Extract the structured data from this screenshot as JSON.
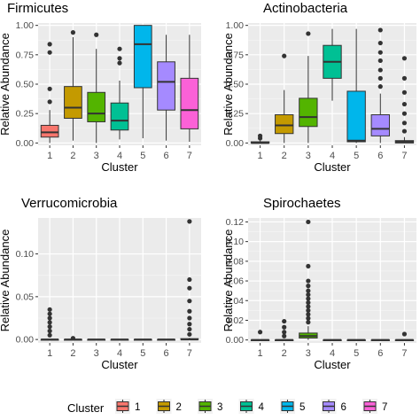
{
  "legend": {
    "title": "Cluster",
    "placement": "bottom",
    "items": [
      {
        "label": "1",
        "color": "#F8766D"
      },
      {
        "label": "2",
        "color": "#C49A00"
      },
      {
        "label": "3",
        "color": "#53B400"
      },
      {
        "label": "4",
        "color": "#00C094"
      },
      {
        "label": "5",
        "color": "#00B6EB"
      },
      {
        "label": "6",
        "color": "#A58AFF"
      },
      {
        "label": "7",
        "color": "#FB61D7"
      }
    ]
  },
  "chart_data": [
    {
      "type": "boxplot",
      "title": "Firmicutes",
      "xlabel": "Cluster",
      "ylabel": "Relative Abundance",
      "categories": [
        "1",
        "2",
        "3",
        "4",
        "5",
        "6",
        "7"
      ],
      "ylim": [
        -0.02,
        1.02
      ],
      "yticks": [
        0.0,
        0.25,
        0.5,
        0.75,
        1.0
      ],
      "ytick_labels": [
        "0.00",
        "0.25",
        "0.50",
        "0.75",
        "1.00"
      ],
      "grid": true,
      "boxes": [
        {
          "q1": 0.05,
          "median": 0.09,
          "q3": 0.15,
          "whisker_low": 0.0,
          "whisker_high": 0.28,
          "outliers": [
            0.35,
            0.46,
            0.77,
            0.84
          ]
        },
        {
          "q1": 0.21,
          "median": 0.3,
          "q3": 0.48,
          "whisker_low": 0.02,
          "whisker_high": 0.9,
          "outliers": [
            0.94
          ]
        },
        {
          "q1": 0.18,
          "median": 0.25,
          "q3": 0.43,
          "whisker_low": 0.0,
          "whisker_high": 0.8,
          "outliers": [
            0.92
          ]
        },
        {
          "q1": 0.11,
          "median": 0.19,
          "q3": 0.34,
          "whisker_low": 0.03,
          "whisker_high": 0.53,
          "outliers": [
            0.68,
            0.72,
            0.8
          ]
        },
        {
          "q1": 0.47,
          "median": 0.84,
          "q3": 1.0,
          "whisker_low": 0.04,
          "whisker_high": 1.0,
          "outliers": []
        },
        {
          "q1": 0.28,
          "median": 0.52,
          "q3": 0.69,
          "whisker_low": 0.02,
          "whisker_high": 0.92,
          "outliers": []
        },
        {
          "q1": 0.12,
          "median": 0.28,
          "q3": 0.55,
          "whisker_low": 0.01,
          "whisker_high": 0.92,
          "outliers": []
        }
      ]
    },
    {
      "type": "boxplot",
      "title": "Actinobacteria",
      "xlabel": "Cluster",
      "ylabel": "Relative Abundance",
      "categories": [
        "1",
        "2",
        "3",
        "4",
        "5",
        "6",
        "7"
      ],
      "ylim": [
        -0.02,
        1.02
      ],
      "yticks": [
        0.0,
        0.25,
        0.5,
        0.75,
        1.0
      ],
      "ytick_labels": [
        "0.00",
        "0.25",
        "0.50",
        "0.75",
        "1.00"
      ],
      "grid": true,
      "boxes": [
        {
          "q1": 0.0,
          "median": 0.0,
          "q3": 0.01,
          "whisker_low": 0.0,
          "whisker_high": 0.02,
          "outliers": [
            0.04,
            0.06
          ]
        },
        {
          "q1": 0.08,
          "median": 0.15,
          "q3": 0.24,
          "whisker_low": 0.0,
          "whisker_high": 0.45,
          "outliers": [
            0.74
          ]
        },
        {
          "q1": 0.14,
          "median": 0.22,
          "q3": 0.38,
          "whisker_low": 0.0,
          "whisker_high": 0.74,
          "outliers": [
            0.93
          ]
        },
        {
          "q1": 0.55,
          "median": 0.69,
          "q3": 0.83,
          "whisker_low": 0.36,
          "whisker_high": 0.97,
          "outliers": []
        },
        {
          "q1": 0.01,
          "median": 0.02,
          "q3": 0.44,
          "whisker_low": 0.0,
          "whisker_high": 0.97,
          "outliers": []
        },
        {
          "q1": 0.06,
          "median": 0.12,
          "q3": 0.24,
          "whisker_low": 0.0,
          "whisker_high": 0.42,
          "outliers": [
            0.48,
            0.55,
            0.62,
            0.7,
            0.77,
            0.85,
            0.96
          ]
        },
        {
          "q1": 0.0,
          "median": 0.01,
          "q3": 0.02,
          "whisker_low": 0.0,
          "whisker_high": 0.05,
          "outliers": [
            0.1,
            0.17,
            0.25,
            0.33,
            0.43,
            0.55,
            0.72
          ]
        }
      ]
    },
    {
      "type": "boxplot",
      "title": "Verrucomicrobia",
      "xlabel": "Cluster",
      "ylabel": "Relative Abundance",
      "categories": [
        "1",
        "2",
        "3",
        "4",
        "5",
        "6",
        "7"
      ],
      "ylim": [
        -0.004,
        0.142
      ],
      "yticks": [
        0.0,
        0.05,
        0.1
      ],
      "ytick_labels": [
        "0.00",
        "0.05",
        "0.10"
      ],
      "grid": true,
      "boxes": [
        {
          "q1": 0.0,
          "median": 0.0,
          "q3": 0.0,
          "whisker_low": 0.0,
          "whisker_high": 0.001,
          "outliers": [
            0.005,
            0.01,
            0.015,
            0.02,
            0.025,
            0.03,
            0.035
          ]
        },
        {
          "q1": 0.0,
          "median": 0.0,
          "q3": 0.0,
          "whisker_low": 0.0,
          "whisker_high": 0.0,
          "outliers": [
            0.0015
          ]
        },
        {
          "q1": 0.0,
          "median": 0.0,
          "q3": 0.0,
          "whisker_low": 0.0,
          "whisker_high": 0.0,
          "outliers": []
        },
        {
          "q1": 0.0,
          "median": 0.0,
          "q3": 0.0,
          "whisker_low": 0.0,
          "whisker_high": 0.0,
          "outliers": []
        },
        {
          "q1": 0.0,
          "median": 0.0,
          "q3": 0.0,
          "whisker_low": 0.0,
          "whisker_high": 0.0,
          "outliers": []
        },
        {
          "q1": 0.0,
          "median": 0.0,
          "q3": 0.0,
          "whisker_low": 0.0,
          "whisker_high": 0.0,
          "outliers": []
        },
        {
          "q1": 0.0,
          "median": 0.0,
          "q3": 0.001,
          "whisker_low": 0.0,
          "whisker_high": 0.002,
          "outliers": [
            0.006,
            0.012,
            0.018,
            0.025,
            0.033,
            0.045,
            0.06,
            0.07,
            0.138
          ]
        }
      ]
    },
    {
      "type": "boxplot",
      "title": "Spirochaetes",
      "xlabel": "Cluster",
      "ylabel": "Relative Abundance",
      "categories": [
        "1",
        "2",
        "3",
        "4",
        "5",
        "6",
        "7"
      ],
      "ylim": [
        -0.003,
        0.124
      ],
      "yticks": [
        0.0,
        0.02,
        0.04,
        0.06,
        0.08,
        0.1,
        0.12
      ],
      "ytick_labels": [
        "0.00",
        "0.02",
        "0.04",
        "0.06",
        "0.08",
        "0.10",
        "0.12"
      ],
      "grid": true,
      "boxes": [
        {
          "q1": 0.0,
          "median": 0.0,
          "q3": 0.0,
          "whisker_low": 0.0,
          "whisker_high": 0.0,
          "outliers": [
            0.008
          ]
        },
        {
          "q1": 0.0,
          "median": 0.0,
          "q3": 0.0,
          "whisker_low": 0.0,
          "whisker_high": 0.001,
          "outliers": [
            0.004,
            0.008,
            0.013,
            0.019
          ]
        },
        {
          "q1": 0.002,
          "median": 0.004,
          "q3": 0.007,
          "whisker_low": 0.0,
          "whisker_high": 0.014,
          "outliers": [
            0.018,
            0.022,
            0.026,
            0.03,
            0.034,
            0.038,
            0.042,
            0.046,
            0.05,
            0.055,
            0.06,
            0.075,
            0.12
          ]
        },
        {
          "q1": 0.0,
          "median": 0.0,
          "q3": 0.0,
          "whisker_low": 0.0,
          "whisker_high": 0.0,
          "outliers": []
        },
        {
          "q1": 0.0,
          "median": 0.0,
          "q3": 0.0,
          "whisker_low": 0.0,
          "whisker_high": 0.0,
          "outliers": []
        },
        {
          "q1": 0.0,
          "median": 0.0,
          "q3": 0.0,
          "whisker_low": 0.0,
          "whisker_high": 0.0,
          "outliers": []
        },
        {
          "q1": 0.0,
          "median": 0.0,
          "q3": 0.0,
          "whisker_low": 0.0,
          "whisker_high": 0.001,
          "outliers": [
            0.006
          ]
        }
      ]
    }
  ]
}
